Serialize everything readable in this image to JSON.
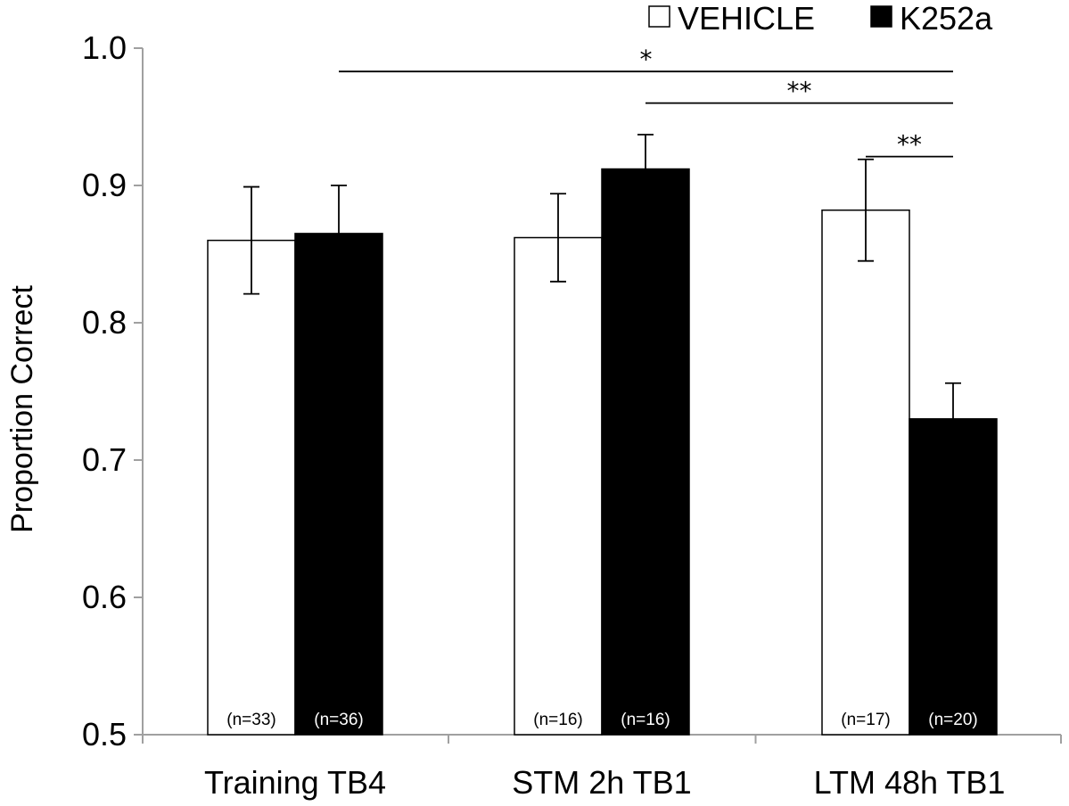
{
  "chart_data": {
    "type": "bar",
    "title": "",
    "xlabel": "",
    "ylabel": "Proportion Correct",
    "ylim": [
      0.5,
      1.0
    ],
    "yticks": [
      0.5,
      0.6,
      0.7,
      0.8,
      0.9,
      1.0
    ],
    "ytick_labels": [
      "0.5",
      "0.6",
      "0.7",
      "0.8",
      "0.9",
      "1.0"
    ],
    "grid": false,
    "legend_position": "top-right",
    "categories": [
      "Training TB4",
      "STM 2h TB1",
      "LTM 48h TB1"
    ],
    "series": [
      {
        "name": "VEHICLE",
        "fill": "#ffffff",
        "values": [
          0.86,
          0.862,
          0.882
        ],
        "errors": [
          0.039,
          0.032,
          0.037
        ],
        "n_labels": [
          "(n=33)",
          "(n=16)",
          "(n=17)"
        ]
      },
      {
        "name": "K252a",
        "fill": "#000000",
        "values": [
          0.865,
          0.912,
          0.73
        ],
        "errors": [
          0.035,
          0.025,
          0.026
        ],
        "n_labels": [
          "(n=36)",
          "(n=16)",
          "(n=20)"
        ]
      }
    ],
    "significance": [
      {
        "label": "*",
        "from_category": 0,
        "from_series": 1,
        "to_category": 2,
        "to_series": 1,
        "level": 0.983
      },
      {
        "label": "**",
        "from_category": 1,
        "from_series": 1,
        "to_category": 2,
        "to_series": 1,
        "level": 0.96
      },
      {
        "label": "**",
        "from_category": 2,
        "from_series": 0,
        "to_category": 2,
        "to_series": 1,
        "level": 0.921
      }
    ]
  }
}
